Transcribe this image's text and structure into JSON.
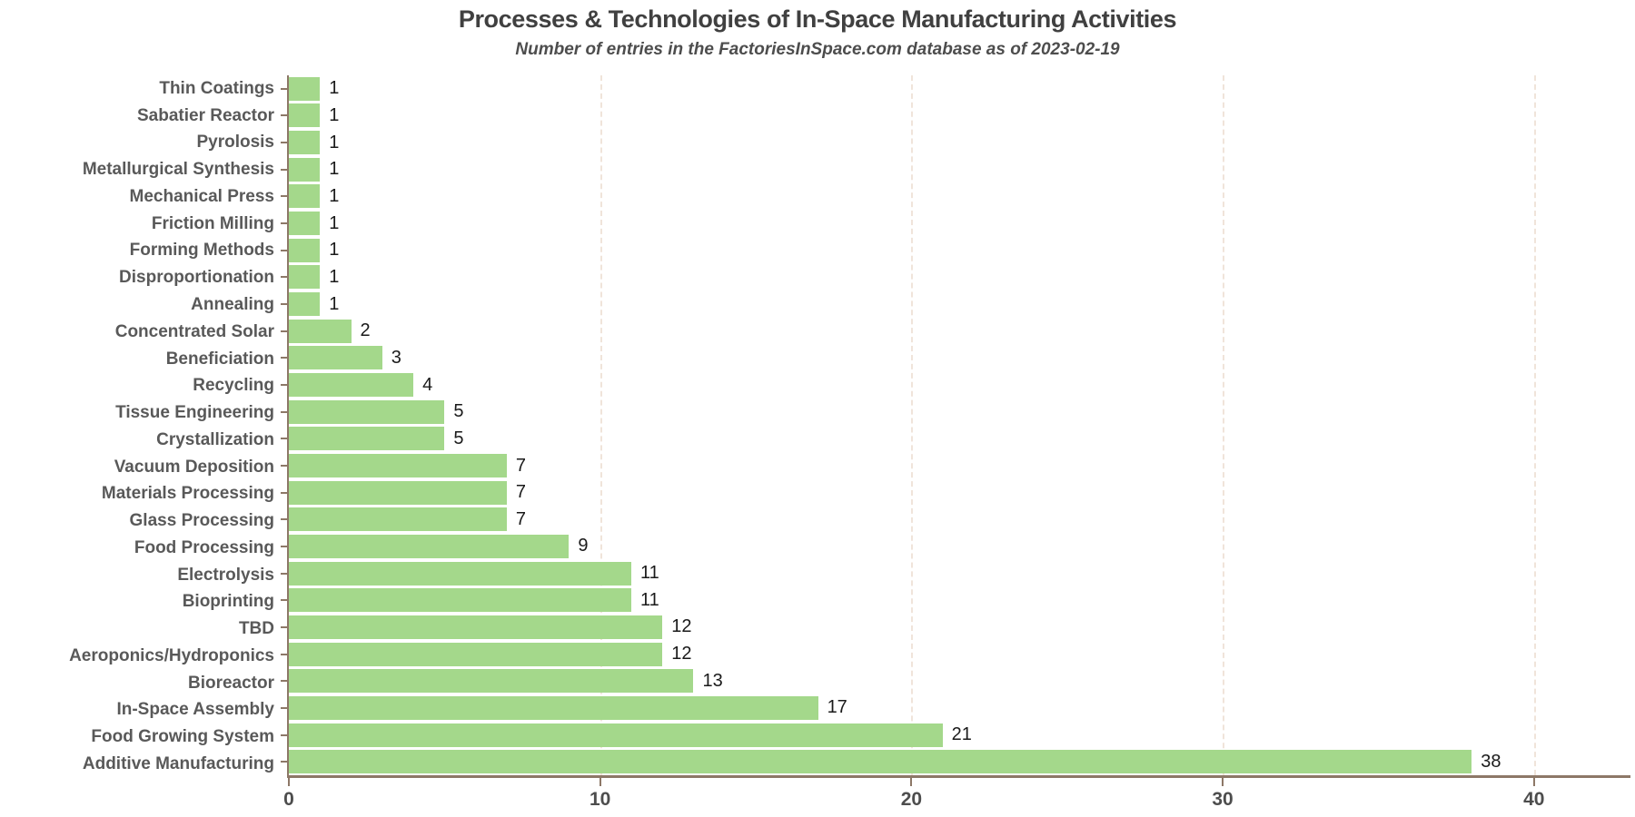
{
  "header": {
    "title": "Processes & Technologies of In-Space Manufacturing Activities",
    "subtitle": "Number of entries in the FactoriesInSpace.com database as of 2023-02-19"
  },
  "chart_data": {
    "type": "bar",
    "orientation": "horizontal",
    "title": "Processes & Technologies of In-Space Manufacturing Activities",
    "subtitle": "Number of entries in the FactoriesInSpace.com database as of 2023-02-19",
    "categories": [
      "Thin Coatings",
      "Sabatier Reactor",
      "Pyrolosis",
      "Metallurgical Synthesis",
      "Mechanical Press",
      "Friction Milling",
      "Forming Methods",
      "Disproportionation",
      "Annealing",
      "Concentrated Solar",
      "Beneficiation",
      "Recycling",
      "Tissue Engineering",
      "Crystallization",
      "Vacuum Deposition",
      "Materials Processing",
      "Glass Processing",
      "Food Processing",
      "Electrolysis",
      "Bioprinting",
      "TBD",
      "Aeroponics/Hydroponics",
      "Bioreactor",
      "In-Space Assembly",
      "Food Growing System",
      "Additive Manufacturing"
    ],
    "values": [
      1,
      1,
      1,
      1,
      1,
      1,
      1,
      1,
      1,
      2,
      3,
      4,
      5,
      5,
      7,
      7,
      7,
      9,
      11,
      11,
      12,
      12,
      13,
      17,
      21,
      38
    ],
    "value_labels_shown": true,
    "xlabel": "",
    "ylabel": "",
    "x_ticks": [
      0,
      10,
      20,
      30,
      40
    ],
    "xlim": [
      0,
      43.1
    ],
    "grid": "vertical-dashed",
    "legend": "none",
    "colors": {
      "background": "#ffffff",
      "bar_fill": "#a4d88b",
      "axis_line": "#8d7867",
      "gridline": "#f0e4da",
      "title_text": "#404040",
      "subtitle_text": "#4d4d4d",
      "category_label": "#595959",
      "value_label": "#1a1a1a",
      "tick_label": "#4d4d4d"
    }
  }
}
